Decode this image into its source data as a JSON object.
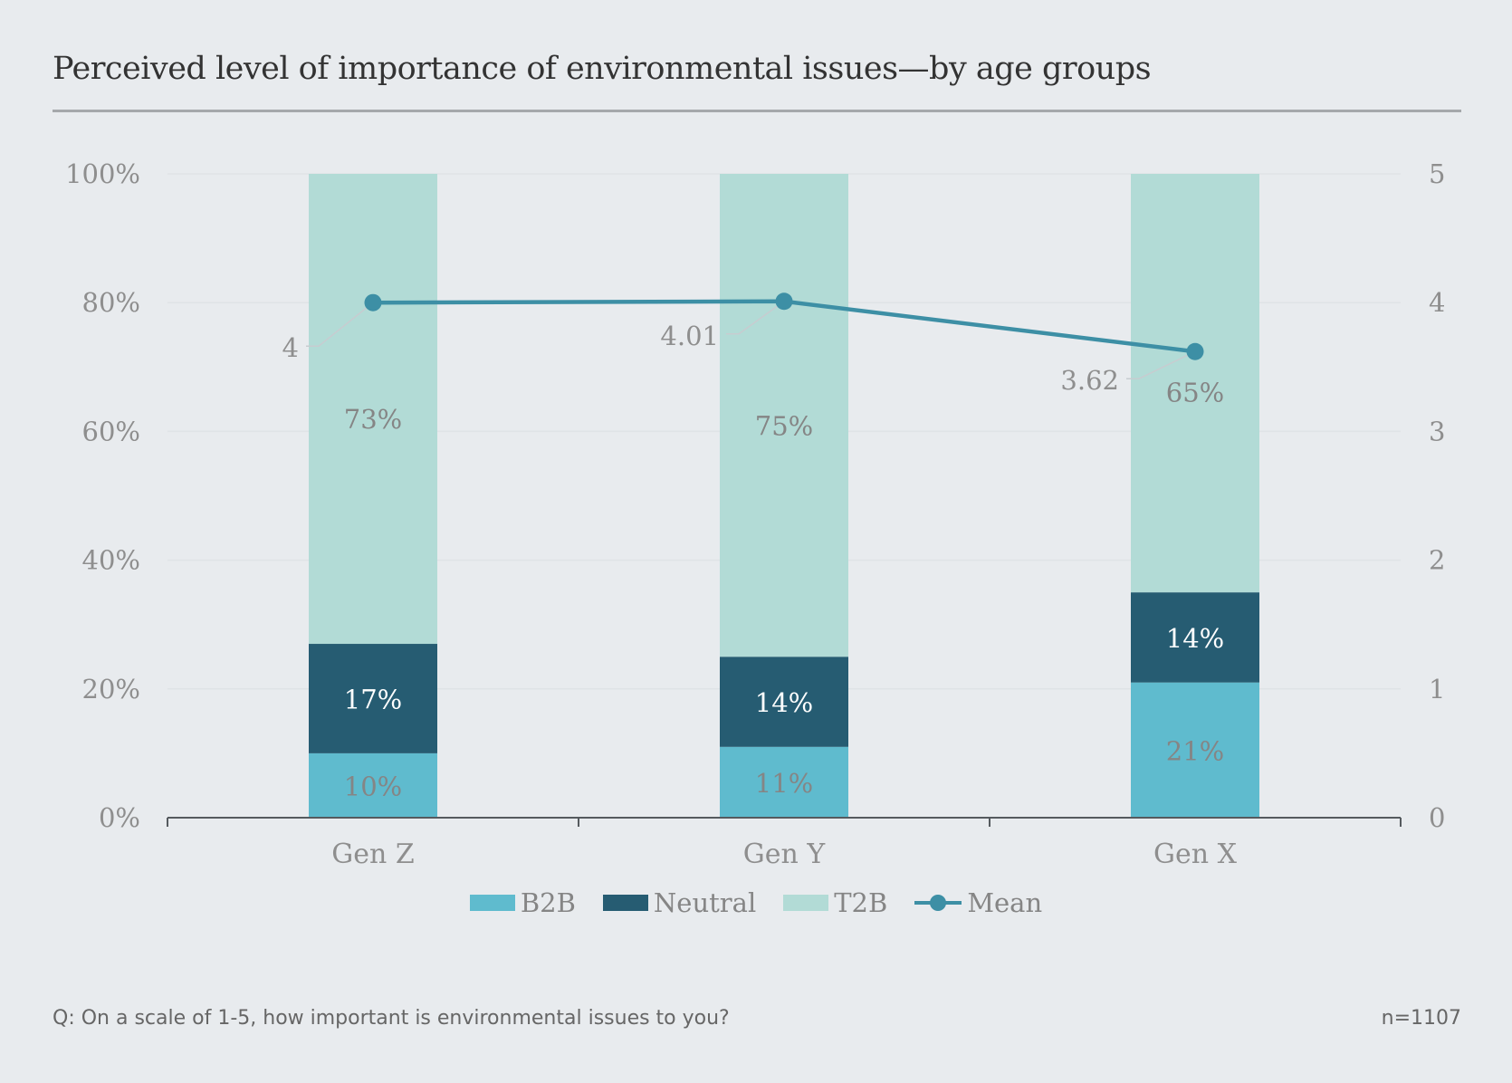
{
  "title": "Perceived level of importance of environmental issues—by age groups",
  "footnote": "Q: On a scale of 1-5, how important is environmental issues to you?",
  "sample_size": "n=1107",
  "colors": {
    "b2b": "#5fbbce",
    "neutral": "#265c72",
    "t2b": "#b2dbd6",
    "mean": "#3d8fa5",
    "axis_text": "#8e8e8e",
    "label_light": "#ffffff",
    "label_dark": "#858585"
  },
  "chart_data": {
    "type": "bar",
    "stacked": true,
    "title": "Perceived level of importance of environmental issues—by age groups",
    "categories": [
      "Gen Z",
      "Gen Y",
      "Gen X"
    ],
    "series": [
      {
        "name": "B2B",
        "values": [
          10,
          11,
          21
        ],
        "labels": [
          "10%",
          "11%",
          "21%"
        ]
      },
      {
        "name": "Neutral",
        "values": [
          17,
          14,
          14
        ],
        "labels": [
          "17%",
          "14%",
          "14%"
        ]
      },
      {
        "name": "T2B",
        "values": [
          73,
          75,
          65
        ],
        "labels": [
          "73%",
          "75%",
          "65%"
        ]
      }
    ],
    "mean_series": {
      "name": "Mean",
      "type": "line",
      "axis": "right",
      "values": [
        4,
        4.01,
        3.62
      ],
      "labels": [
        "4",
        "4.01",
        "3.62"
      ]
    },
    "y_left": {
      "ylim": [
        0,
        100
      ],
      "ticks": [
        "0%",
        "20%",
        "40%",
        "60%",
        "80%",
        "100%"
      ],
      "tick_values": [
        0,
        20,
        40,
        60,
        80,
        100
      ]
    },
    "y_right": {
      "ylim": [
        0,
        5
      ],
      "ticks": [
        "0",
        "1",
        "2",
        "3",
        "4",
        "5"
      ],
      "tick_values": [
        0,
        1,
        2,
        3,
        4,
        5
      ]
    },
    "legend": [
      "B2B",
      "Neutral",
      "T2B",
      "Mean"
    ],
    "legend_position": "bottom-center",
    "grid": true
  }
}
